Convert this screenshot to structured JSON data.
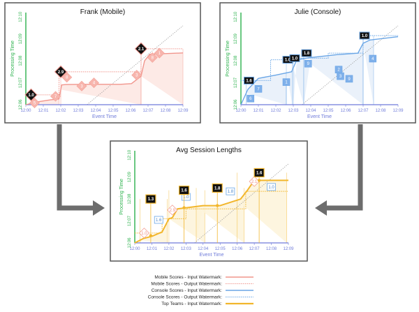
{
  "colors": {
    "red": "#f1958c",
    "red_fill": "#fde6e2",
    "blue": "#6aa6e6",
    "blue_fill": "#e6eff9",
    "gold": "#f2b62c",
    "gold_fill": "#fdf3d9",
    "tick": "#6f7bd9",
    "y_axis": "#2bb14c",
    "arrow": "#6d6d6d"
  },
  "axes": {
    "x_label": "Event Time",
    "y_label": "Processing Time",
    "x_ticks": [
      "12:00",
      "12:01",
      "12:02",
      "12:03",
      "12:04",
      "12:05",
      "12:06",
      "12:07",
      "12:08",
      "12:09"
    ],
    "y_ticks": [
      "12:06",
      "12:07",
      "12:08",
      "12:09",
      "12:10"
    ]
  },
  "legend": [
    {
      "label": "Mobile Scores - Input Watermark:",
      "style": "red-solid"
    },
    {
      "label": "Mobile Scores - Output Watermark:",
      "style": "red-dotted"
    },
    {
      "label": "Console Scores - Input Watermark:",
      "style": "blue-solid"
    },
    {
      "label": "Console Scores - Output Watermark:",
      "style": "blue-dotted"
    },
    {
      "label": "Top Teams - Input Watermark:",
      "style": "gold-solid"
    }
  ],
  "panels": [
    {
      "id": "frank",
      "title": "Frank (Mobile)",
      "color": "red",
      "input_watermark": [
        [
          0,
          6.0
        ],
        [
          0.6,
          6.12
        ],
        [
          1.4,
          6.22
        ],
        [
          1.9,
          6.26
        ],
        [
          2.05,
          6.9
        ],
        [
          2.3,
          6.92
        ],
        [
          4.0,
          6.93
        ],
        [
          5.4,
          6.93
        ],
        [
          6.05,
          6.96
        ],
        [
          6.6,
          7.3
        ],
        [
          6.8,
          8.0
        ],
        [
          7.1,
          8.3
        ],
        [
          9.0,
          8.36
        ]
      ],
      "output_watermark": [
        [
          0,
          6.45
        ],
        [
          1.9,
          6.45
        ],
        [
          1.9,
          7.5
        ],
        [
          6.6,
          7.5
        ],
        [
          6.6,
          8.55
        ],
        [
          9.0,
          8.55
        ]
      ],
      "sessions": [
        {
          "x0": 0.3,
          "x1": 1.9,
          "badge": "1.0",
          "by": 6.45
        },
        {
          "x0": 2.0,
          "x1": 6.6,
          "badge": "2.9",
          "by": 7.5
        },
        {
          "x0": 6.6,
          "x1": 9.0,
          "badge": "2.1",
          "by": 8.55
        }
      ],
      "scores": [
        {
          "x": 0.5,
          "y": 6.08,
          "v": "5"
        },
        {
          "x": 1.7,
          "y": 6.38,
          "v": "7"
        },
        {
          "x": 2.35,
          "y": 7.25,
          "v": "8"
        },
        {
          "x": 3.2,
          "y": 6.85,
          "v": "3"
        },
        {
          "x": 3.9,
          "y": 7.0,
          "v": "4"
        },
        {
          "x": 6.35,
          "y": 7.35,
          "v": "3"
        },
        {
          "x": 7.25,
          "y": 8.15,
          "v": "8"
        },
        {
          "x": 7.65,
          "y": 8.35,
          "v": "1"
        }
      ]
    },
    {
      "id": "julie",
      "title": "Julie (Console)",
      "color": "blue",
      "input_watermark": [
        [
          0,
          6.0
        ],
        [
          0.4,
          6.7
        ],
        [
          1.0,
          7.2
        ],
        [
          2.0,
          7.35
        ],
        [
          2.6,
          7.45
        ],
        [
          2.9,
          7.5
        ],
        [
          3.2,
          8.05
        ],
        [
          4.0,
          8.15
        ],
        [
          5.5,
          8.28
        ],
        [
          6.7,
          8.35
        ],
        [
          7.0,
          8.8
        ],
        [
          7.4,
          8.95
        ],
        [
          9.0,
          9.1
        ]
      ],
      "output_watermark": [
        [
          0,
          7.1
        ],
        [
          1.7,
          7.1
        ],
        [
          1.7,
          8.05
        ],
        [
          2.4,
          8.05
        ],
        [
          2.4,
          8.12
        ],
        [
          5.0,
          8.12
        ],
        [
          5.0,
          8.35
        ],
        [
          7.0,
          8.35
        ],
        [
          7.0,
          9.15
        ],
        [
          9.0,
          9.15
        ]
      ],
      "sessions": [
        {
          "x0": 0.3,
          "x1": 2.6,
          "badge": "1.6",
          "by": 7.1
        },
        {
          "x0": 2.6,
          "x1": 2.95,
          "badge": "1.0",
          "by": 8.05
        },
        {
          "x0": 3.0,
          "x1": 3.6,
          "badge": "1.0",
          "by": 8.12
        },
        {
          "x0": 3.6,
          "x1": 7.0,
          "badge": "1.8",
          "by": 8.35
        },
        {
          "x0": 7.0,
          "x1": 7.6,
          "badge": "1.0",
          "by": 9.15
        }
      ],
      "scores": [
        {
          "x": 0.55,
          "y": 6.28,
          "v": "6"
        },
        {
          "x": 1.0,
          "y": 6.72,
          "v": "7"
        },
        {
          "x": 2.6,
          "y": 7.03,
          "v": "1"
        },
        {
          "x": 3.85,
          "y": 7.87,
          "v": "9"
        },
        {
          "x": 5.6,
          "y": 7.6,
          "v": "2"
        },
        {
          "x": 5.7,
          "y": 7.3,
          "v": "3"
        },
        {
          "x": 6.2,
          "y": 7.18,
          "v": "9"
        },
        {
          "x": 7.55,
          "y": 8.1,
          "v": "4"
        }
      ]
    },
    {
      "id": "avg",
      "title": "Avg Session Lengths",
      "color": "gold",
      "input_watermark": [
        [
          0,
          6.0
        ],
        [
          0.5,
          6.2
        ],
        [
          1.0,
          6.3
        ],
        [
          1.6,
          6.5
        ],
        [
          2.0,
          7.1
        ],
        [
          2.2,
          7.15
        ],
        [
          2.5,
          7.55
        ],
        [
          4.0,
          7.7
        ],
        [
          5.0,
          7.7
        ],
        [
          6.2,
          8.0
        ],
        [
          6.6,
          8.4
        ],
        [
          7.0,
          8.85
        ],
        [
          9.0,
          8.85
        ]
      ],
      "output_watermark": [
        [
          0,
          6.45
        ],
        [
          1.6,
          6.45
        ],
        [
          1.6,
          7.1
        ],
        [
          3.0,
          7.1
        ],
        [
          3.0,
          7.55
        ],
        [
          6.5,
          7.55
        ],
        [
          6.5,
          8.35
        ],
        [
          9.0,
          8.35
        ]
      ],
      "sessions": [
        {
          "x0": 0.3,
          "x1": 1.9,
          "badge": "1.3",
          "by": 8.0
        },
        {
          "x0": 2.0,
          "x1": 4.1,
          "badge": "1.6",
          "by": 8.4
        },
        {
          "x0": 3.6,
          "x1": 6.4,
          "badge": "1.8",
          "by": 8.5
        },
        {
          "x0": 6.0,
          "x1": 8.9,
          "badge": "1.6",
          "by": 9.2
        }
      ],
      "scores": [
        {
          "x": 0.55,
          "y": 6.45,
          "v": "1.0"
        },
        {
          "x": 1.4,
          "y": 7.05,
          "v": "1.6"
        },
        {
          "x": 2.2,
          "y": 7.5,
          "v": "2.9"
        },
        {
          "x": 3.0,
          "y": 8.1,
          "v": "1.0"
        },
        {
          "x": 5.6,
          "y": 8.35,
          "v": "1.8"
        },
        {
          "x": 7.0,
          "y": 8.8,
          "v": "2.1"
        },
        {
          "x": 8.0,
          "y": 8.55,
          "v": "1.0"
        }
      ]
    }
  ]
}
